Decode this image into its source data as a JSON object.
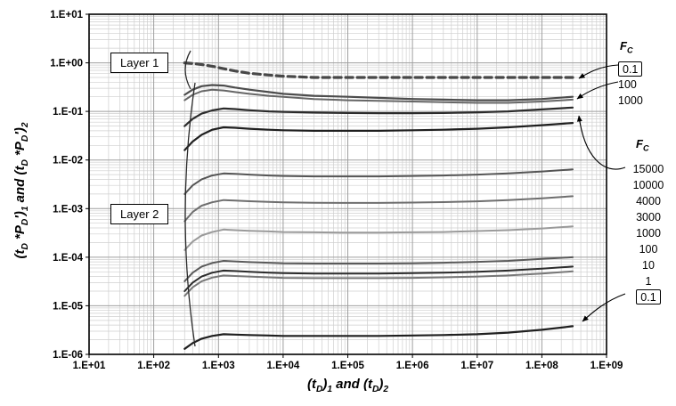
{
  "chart": {
    "y_axis": {
      "label_parts": [
        {
          "t": "(t"
        },
        {
          "sub": "D"
        },
        {
          "t": " *P"
        },
        {
          "sub": "D"
        },
        {
          "t": "′)"
        },
        {
          "sub": "1"
        },
        {
          "t": " and (t"
        },
        {
          "sub": "D"
        },
        {
          "t": " *P"
        },
        {
          "sub": "D"
        },
        {
          "t": "′)"
        },
        {
          "sub": "2"
        }
      ]
    },
    "x_axis": {
      "label_parts": [
        {
          "t": "(t"
        },
        {
          "sub": "D"
        },
        {
          "t": ")"
        },
        {
          "sub": "1"
        },
        {
          "t": " and (t"
        },
        {
          "sub": "D"
        },
        {
          "t": ")"
        },
        {
          "sub": "2"
        }
      ]
    },
    "annotations": {
      "layer1": "Layer 1",
      "layer2": "Layer 2"
    },
    "legend_top": {
      "title_parts": [
        {
          "t": "F"
        },
        {
          "sub": "C"
        }
      ],
      "items": [
        {
          "label": "0.1",
          "boxed": true
        },
        {
          "label": "100",
          "boxed": false
        },
        {
          "label": "1000",
          "boxed": false
        }
      ]
    },
    "legend_bottom": {
      "title_parts": [
        {
          "t": "F"
        },
        {
          "sub": "C"
        }
      ],
      "items": [
        {
          "label": "15000",
          "boxed": false
        },
        {
          "label": "10000",
          "boxed": false
        },
        {
          "label": "4000",
          "boxed": false
        },
        {
          "label": "3000",
          "boxed": false
        },
        {
          "label": "1000",
          "boxed": false
        },
        {
          "label": "100",
          "boxed": false
        },
        {
          "label": "10",
          "boxed": false
        },
        {
          "label": "1",
          "boxed": false
        },
        {
          "label": "0.1",
          "boxed": true
        }
      ]
    }
  },
  "chart_data": {
    "type": "line",
    "x_scale": "log",
    "y_scale": "log",
    "xlim": [
      10,
      1000000000
    ],
    "ylim": [
      1e-06,
      10
    ],
    "xlabel": "(tD)1 and (tD)2",
    "ylabel": "(tD *PD')1 and (tD *PD')2",
    "grid": "log-log, major and minor gridlines on",
    "legend_position": "right",
    "x_tick_labels": [
      "1.E+01",
      "1.E+02",
      "1.E+03",
      "1.E+04",
      "1.E+05",
      "1.E+06",
      "1.E+07",
      "1.E+08",
      "1.E+09"
    ],
    "y_tick_labels": [
      "1.E+01",
      "1.E+00",
      "1.E-01",
      "1.E-02",
      "1.E-03",
      "1.E-04",
      "1.E-05",
      "1.E-06"
    ],
    "x": [
      300,
      400,
      550,
      800,
      1200,
      1800,
      3000,
      6000,
      10000,
      30000,
      100000,
      300000,
      1000000,
      3000000,
      10000000,
      30000000,
      100000000,
      300000000
    ],
    "series": [
      {
        "name": "layer1-fc-0.1",
        "layer": "Layer 1",
        "fc": 0.1,
        "style": "dashed",
        "dash": "8 5",
        "color": "#474747",
        "width": 3.2,
        "values": [
          1.0,
          0.97,
          0.92,
          0.85,
          0.76,
          0.68,
          0.61,
          0.56,
          0.53,
          0.5,
          0.5,
          0.5,
          0.5,
          0.5,
          0.5,
          0.5,
          0.5,
          0.5
        ]
      },
      {
        "name": "layer1-fc-100",
        "layer": "Layer 1",
        "fc": 100,
        "style": "solid",
        "color": "#4d4d4d",
        "width": 2.2,
        "values": [
          0.22,
          0.28,
          0.33,
          0.35,
          0.34,
          0.31,
          0.28,
          0.25,
          0.23,
          0.21,
          0.2,
          0.19,
          0.18,
          0.175,
          0.17,
          0.17,
          0.18,
          0.2
        ]
      },
      {
        "name": "layer1-fc-1000",
        "layer": "Layer 1",
        "fc": 1000,
        "style": "solid",
        "color": "#666666",
        "width": 2,
        "values": [
          0.17,
          0.22,
          0.26,
          0.28,
          0.27,
          0.25,
          0.23,
          0.21,
          0.2,
          0.18,
          0.17,
          0.165,
          0.16,
          0.155,
          0.15,
          0.15,
          0.16,
          0.175
        ]
      },
      {
        "name": "layer2-fc-15000",
        "layer": "Layer 2",
        "fc": 15000,
        "style": "solid",
        "color": "#2b2b2b",
        "width": 2.2,
        "values": [
          0.05,
          0.07,
          0.09,
          0.105,
          0.115,
          0.112,
          0.106,
          0.1,
          0.098,
          0.095,
          0.093,
          0.092,
          0.092,
          0.093,
          0.096,
          0.1,
          0.11,
          0.12
        ]
      },
      {
        "name": "layer2-fc-10000",
        "layer": "Layer 2",
        "fc": 10000,
        "style": "solid",
        "color": "#1f1f1f",
        "width": 2.2,
        "values": [
          0.016,
          0.024,
          0.033,
          0.042,
          0.047,
          0.046,
          0.044,
          0.042,
          0.041,
          0.04,
          0.04,
          0.04,
          0.041,
          0.042,
          0.044,
          0.047,
          0.052,
          0.058
        ]
      },
      {
        "name": "layer2-fc-4000",
        "layer": "Layer 2",
        "fc": 4000,
        "style": "solid",
        "color": "#555555",
        "width": 2,
        "values": [
          0.002,
          0.003,
          0.004,
          0.0048,
          0.0053,
          0.0052,
          0.005,
          0.0048,
          0.0047,
          0.0046,
          0.0046,
          0.0046,
          0.0047,
          0.0048,
          0.005,
          0.0053,
          0.0058,
          0.0064
        ]
      },
      {
        "name": "layer2-fc-3000",
        "layer": "Layer 2",
        "fc": 3000,
        "style": "solid",
        "color": "#6e6e6e",
        "width": 2,
        "values": [
          0.00055,
          0.00085,
          0.00115,
          0.00135,
          0.0015,
          0.00147,
          0.00142,
          0.00137,
          0.00134,
          0.00132,
          0.00131,
          0.00131,
          0.00133,
          0.00136,
          0.00141,
          0.0015,
          0.00163,
          0.0018
        ]
      },
      {
        "name": "layer2-fc-1000",
        "layer": "Layer 2",
        "fc": 1000,
        "style": "solid",
        "color": "#9a9a9a",
        "width": 2,
        "values": [
          0.00014,
          0.00021,
          0.00028,
          0.00033,
          0.00037,
          0.00036,
          0.00035,
          0.00034,
          0.00033,
          0.000325,
          0.00032,
          0.00032,
          0.000325,
          0.00033,
          0.000345,
          0.00036,
          0.00039,
          0.00043
        ]
      },
      {
        "name": "layer2-fc-100",
        "layer": "Layer 2",
        "fc": 100,
        "style": "solid",
        "color": "#5a5a5a",
        "width": 2,
        "values": [
          3.2e-05,
          4.8e-05,
          6.4e-05,
          7.6e-05,
          8.4e-05,
          8.2e-05,
          7.9e-05,
          7.7e-05,
          7.5e-05,
          7.4e-05,
          7.4e-05,
          7.4e-05,
          7.5e-05,
          7.7e-05,
          8e-05,
          8.4e-05,
          9.2e-05,
          0.0001
        ]
      },
      {
        "name": "layer2-fc-10",
        "layer": "Layer 2",
        "fc": 10,
        "style": "solid",
        "color": "#2b2b2b",
        "width": 2,
        "values": [
          2e-05,
          3e-05,
          4e-05,
          4.8e-05,
          5.3e-05,
          5.2e-05,
          5e-05,
          4.8e-05,
          4.7e-05,
          4.6e-05,
          4.6e-05,
          4.6e-05,
          4.7e-05,
          4.8e-05,
          5e-05,
          5.3e-05,
          5.8e-05,
          6.4e-05
        ]
      },
      {
        "name": "layer2-fc-1",
        "layer": "Layer 2",
        "fc": 1,
        "style": "solid",
        "color": "#777777",
        "width": 2,
        "values": [
          1.6e-05,
          2.4e-05,
          3.2e-05,
          3.8e-05,
          4.2e-05,
          4.1e-05,
          4e-05,
          3.85e-05,
          3.75e-05,
          3.7e-05,
          3.7e-05,
          3.7e-05,
          3.75e-05,
          3.85e-05,
          4e-05,
          4.2e-05,
          4.6e-05,
          5.1e-05
        ]
      },
      {
        "name": "layer2-fc-0.1",
        "layer": "Layer 2",
        "fc": 0.1,
        "style": "solid",
        "color": "#1f1f1f",
        "width": 2.2,
        "values": [
          1.3e-06,
          1.7e-06,
          2.1e-06,
          2.4e-06,
          2.6e-06,
          2.55e-06,
          2.5e-06,
          2.45e-06,
          2.4e-06,
          2.4e-06,
          2.4e-06,
          2.4e-06,
          2.45e-06,
          2.5e-06,
          2.6e-06,
          2.8e-06,
          3.2e-06,
          3.8e-06
        ]
      }
    ]
  }
}
